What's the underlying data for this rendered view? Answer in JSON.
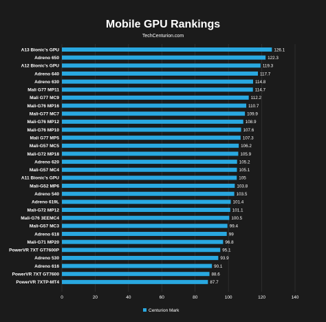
{
  "chart_data": {
    "type": "bar",
    "orientation": "horizontal",
    "title": "Mobile GPU Rankings",
    "subtitle": "TechCenturion.com",
    "xlim": [
      0,
      140
    ],
    "x_ticks": [
      0,
      20,
      40,
      60,
      80,
      100,
      120,
      140
    ],
    "grid": true,
    "legend_position": "bottom",
    "bar_color": "#29a8e0",
    "categories": [
      "A13 Bionic's GPU",
      "Adreno 650",
      "A12 Bionic's GPU",
      "Adreno 640",
      "Adreno 630",
      "Mali G77 MP11",
      "Mali G77 MC9",
      "Mali-G76 MP16",
      "Mali-G77 MC7",
      "Mali-G76 MP12",
      "Mali-G76 MP10",
      "Mali G77 MP5",
      "Mali-G57 MC5",
      "Mali-G72 MP18",
      "Adreno 620",
      "Mali-G57 MC4",
      "A11 Bionic's GPU",
      "Mali-G52 MP6",
      "Adreno 540",
      "Adreno 619L",
      "Mali-G72 MP12",
      "Mali-G76 3EEMC4",
      "Mali-G57 MC3",
      "Adreno 618",
      "Mali-G71 MP20",
      "PowerVR 7XT GT7600P",
      "Adreno 530",
      "Adreno 616",
      "PowerVR 7XT GT7600",
      "PowerVR 7XTP-MT4"
    ],
    "series": [
      {
        "name": "Centurion Mark",
        "values": [
          126.1,
          122.3,
          119.3,
          117.7,
          114.8,
          114.7,
          112.2,
          110.7,
          109.9,
          108.9,
          107.6,
          107.3,
          106.2,
          105.9,
          105.2,
          105.1,
          105,
          103.8,
          103.5,
          101.4,
          101.1,
          100.5,
          99.4,
          99,
          96.8,
          95.1,
          93.9,
          90.1,
          88.6,
          87.7
        ],
        "labels": [
          "126.1",
          "122.3",
          "119.3",
          "117.7",
          "114.8",
          "114.7",
          "112.2",
          "110.7",
          "109.9",
          "108.9",
          "107.6",
          "107.3",
          "106.2",
          "105.9",
          "105.2",
          "105.1",
          "105",
          "103.8",
          "103.5",
          "101.4",
          "101.1",
          "100.5",
          "99.4",
          "99",
          "96.8",
          "95.1",
          "93.9",
          "90.1",
          "88.6",
          "87.7"
        ]
      }
    ]
  }
}
